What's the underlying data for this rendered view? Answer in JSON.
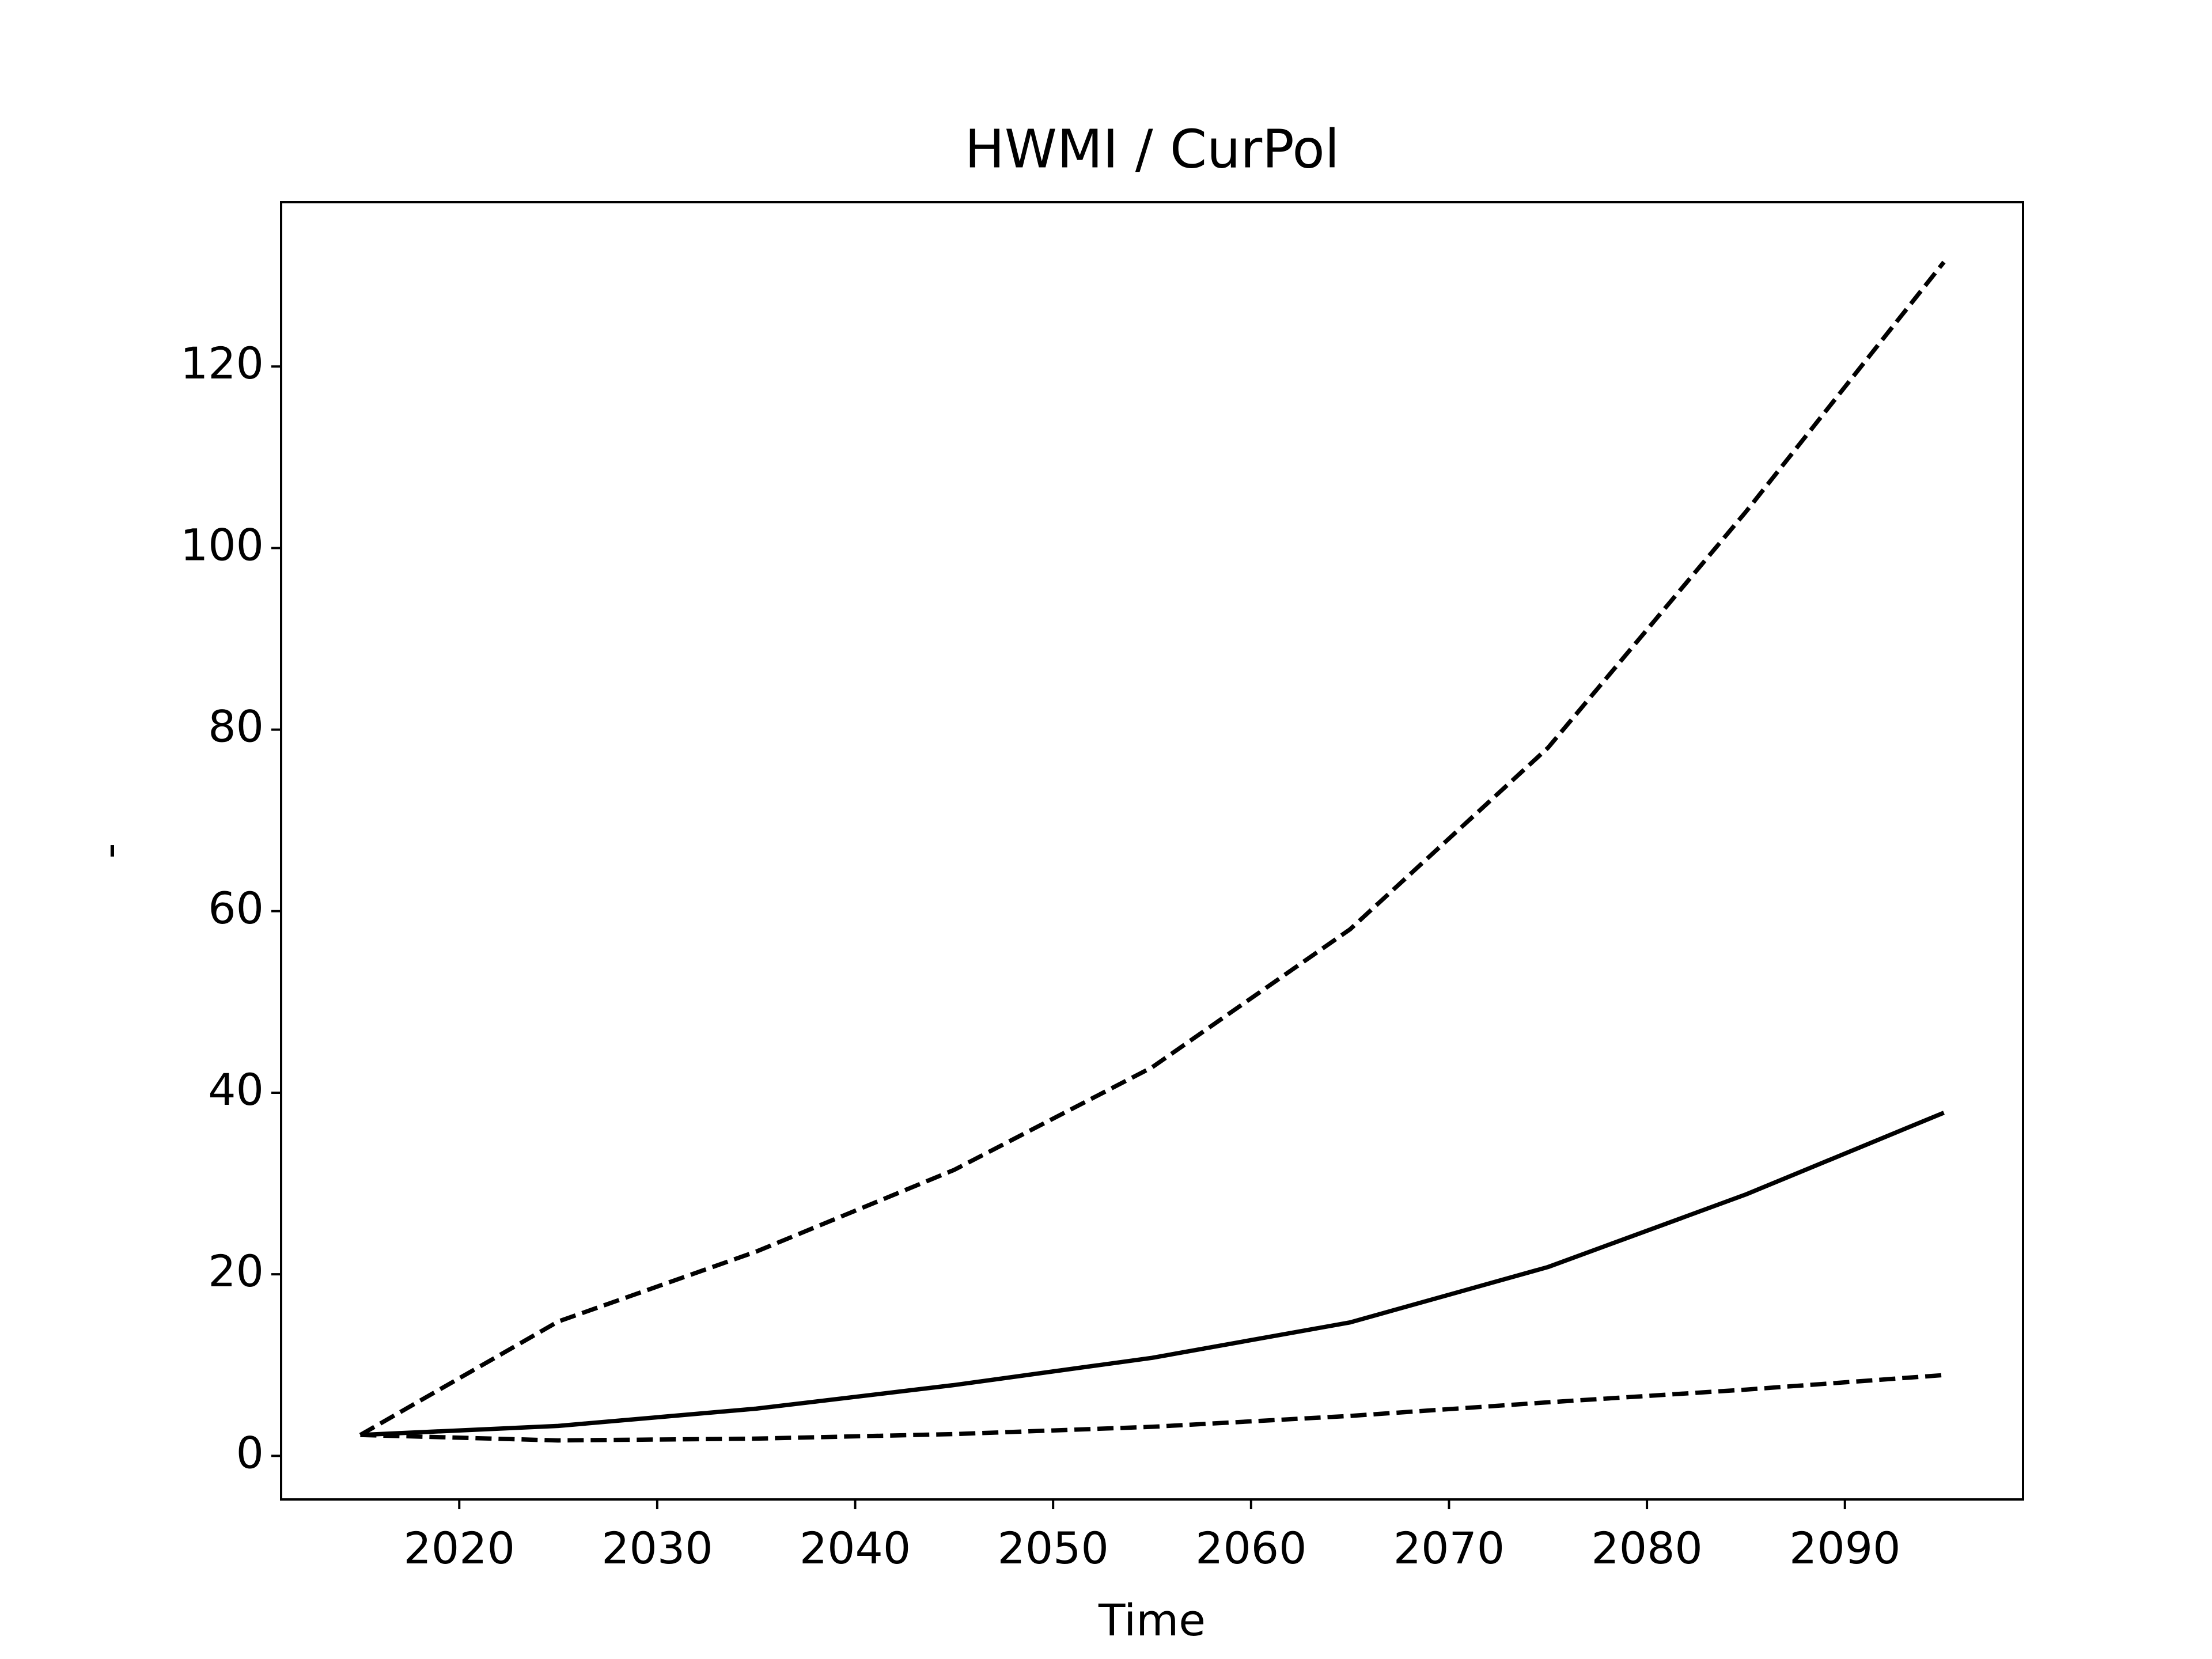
{
  "chart_data": {
    "type": "line",
    "title": "HWMI / CurPol",
    "xlabel": "Time",
    "ylabel": "-",
    "x": [
      2015,
      2025,
      2035,
      2045,
      2055,
      2065,
      2075,
      2085,
      2095
    ],
    "series": [
      {
        "color": "#000000",
        "dash": true,
        "values": [
          2.3,
          14.8,
          22.5,
          31.5,
          42.8,
          58,
          78,
          104,
          131.5
        ]
      },
      {
        "color": "#000000",
        "dash": false,
        "values": [
          2.3,
          3.3,
          5.2,
          7.8,
          10.8,
          14.7,
          20.8,
          28.8,
          37.8
        ]
      },
      {
        "color": "#000000",
        "dash": true,
        "values": [
          2.3,
          1.7,
          1.9,
          2.4,
          3.2,
          4.4,
          5.9,
          7.3,
          8.9
        ]
      }
    ],
    "xlim": [
      2011,
      2099
    ],
    "xticks": [
      2020,
      2030,
      2040,
      2050,
      2060,
      2070,
      2080,
      2090
    ],
    "ylim": [
      -4.8,
      138.1
    ],
    "yticks": [
      0,
      20,
      40,
      60,
      80,
      100,
      120
    ],
    "grid": false
  }
}
